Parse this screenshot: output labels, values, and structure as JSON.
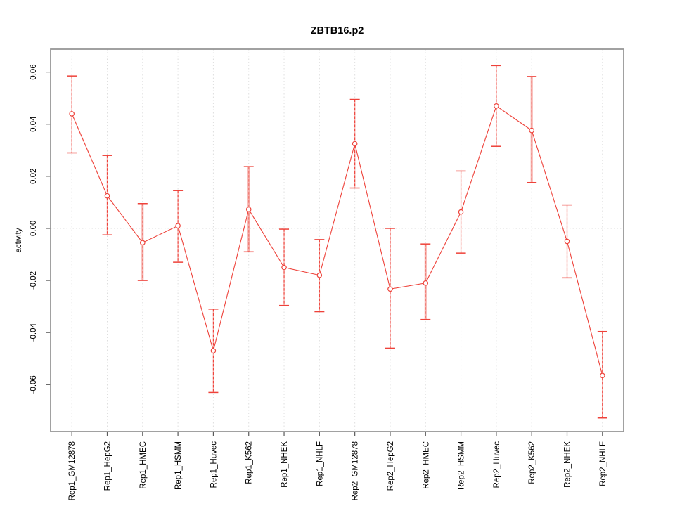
{
  "chart_data": {
    "type": "line",
    "subtype": "points-with-error-bars",
    "title": "ZBTB16.p2",
    "xlabel": "",
    "ylabel": "activity",
    "categories": [
      "Rep1_GM12878",
      "Rep1_HepG2",
      "Rep1_HMEC",
      "Rep1_HSMM",
      "Rep1_Huvec",
      "Rep1_K562",
      "Rep1_NHEK",
      "Rep1_NHLF",
      "Rep2_GM12878",
      "Rep2_HepG2",
      "Rep2_HMEC",
      "Rep2_HSMM",
      "Rep2_Huvec",
      "Rep2_K562",
      "Rep2_NHEK",
      "Rep2_NHLF"
    ],
    "series": [
      {
        "name": "activity",
        "values": [
          0.044,
          0.0125,
          -0.0055,
          0.001,
          -0.047,
          0.0073,
          -0.015,
          -0.018,
          0.0325,
          -0.0233,
          -0.021,
          0.0063,
          0.047,
          0.0376,
          -0.005,
          -0.0565
        ],
        "lower": [
          0.029,
          -0.0025,
          -0.02,
          -0.013,
          -0.063,
          -0.009,
          -0.0296,
          -0.032,
          0.0155,
          -0.046,
          -0.035,
          -0.0095,
          0.0315,
          0.0176,
          -0.019,
          -0.0728
        ],
        "upper": [
          0.0585,
          0.028,
          0.0095,
          0.0145,
          -0.031,
          0.0237,
          -0.0003,
          -0.0043,
          0.0495,
          0.0,
          -0.006,
          0.022,
          0.0625,
          0.0583,
          0.009,
          -0.0396
        ]
      }
    ],
    "error_bars": true,
    "wide_error_bar_categories": [
      "Rep1_HMEC",
      "Rep1_K562",
      "Rep2_HMEC",
      "Rep2_K562"
    ],
    "ylim": [
      -0.078,
      0.0688
    ],
    "yticks": [
      0.06,
      0.04,
      0.02,
      0.0,
      -0.02,
      -0.04,
      -0.06
    ],
    "ytick_labels": [
      "0.06",
      "0.04",
      "0.02",
      "0.00",
      "-0.02",
      "-0.04",
      "-0.06"
    ],
    "grid": "vertical dotted line at every category; horizontal dotted line at y=0 only",
    "legend": "none",
    "colors": {
      "point_and_line": "#ee423a",
      "error_bar_soft": "#f6aca8",
      "error_bar_dash_soft": "#ef776e",
      "grid": "#dedede",
      "box": "#979797",
      "tick": "#5a5a5a",
      "text": "#000000",
      "background": "#ffffff"
    }
  }
}
